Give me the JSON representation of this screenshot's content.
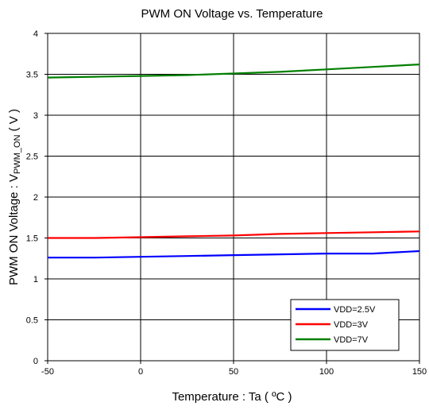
{
  "chart_data": {
    "type": "line",
    "title": "PWM ON Voltage vs. Temperature",
    "xlabel": "Temperature : Ta ( ºC )",
    "ylabel_main": "PWM ON Voltage : V",
    "ylabel_sub": "PWM_ON",
    "ylabel_unit": " ( V )",
    "xlim": [
      -50,
      150
    ],
    "ylim": [
      0,
      4
    ],
    "x_ticks": [
      -50,
      0,
      50,
      100,
      150
    ],
    "y_ticks": [
      0,
      0.5,
      1,
      1.5,
      2,
      2.5,
      3,
      3.5,
      4
    ],
    "x_tick_labels": [
      "-50",
      "0",
      "50",
      "100",
      "150"
    ],
    "y_tick_labels": [
      "0",
      "0.5",
      "1",
      "1.5",
      "2",
      "2.5",
      "3",
      "3.5",
      "4"
    ],
    "grid": true,
    "legend_position": "bottom-right",
    "series": [
      {
        "name": "VDD=2.5V",
        "color": "#0000ff",
        "x": [
          -50,
          -25,
          0,
          25,
          50,
          75,
          100,
          125,
          150
        ],
        "y": [
          1.26,
          1.26,
          1.27,
          1.28,
          1.29,
          1.3,
          1.31,
          1.31,
          1.34
        ]
      },
      {
        "name": "VDD=3V",
        "color": "#ff0000",
        "x": [
          -50,
          -25,
          0,
          25,
          50,
          75,
          100,
          125,
          150
        ],
        "y": [
          1.5,
          1.5,
          1.51,
          1.52,
          1.53,
          1.55,
          1.56,
          1.57,
          1.58
        ]
      },
      {
        "name": "VDD=7V",
        "color": "#008000",
        "x": [
          -50,
          -25,
          0,
          25,
          50,
          75,
          100,
          125,
          150
        ],
        "y": [
          3.46,
          3.47,
          3.48,
          3.49,
          3.51,
          3.53,
          3.56,
          3.59,
          3.62
        ]
      }
    ]
  }
}
